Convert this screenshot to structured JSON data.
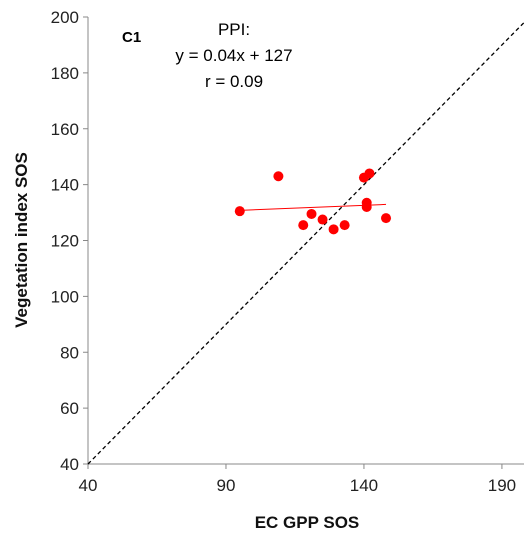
{
  "chart_data": {
    "type": "scatter",
    "panel_label": "C1",
    "annotations": [
      "PPI:",
      "y = 0.04x + 127",
      "r = 0.09"
    ],
    "xlabel": "EC GPP SOS",
    "ylabel": "Vegetation index SOS",
    "xlim": [
      40,
      198
    ],
    "ylim": [
      40,
      200
    ],
    "xticks": [
      40,
      90,
      140,
      190
    ],
    "yticks": [
      40,
      60,
      80,
      100,
      120,
      140,
      160,
      180,
      200
    ],
    "grid": false,
    "points": [
      {
        "x": 95,
        "y": 130.5
      },
      {
        "x": 109,
        "y": 143
      },
      {
        "x": 118,
        "y": 125.5
      },
      {
        "x": 121,
        "y": 129.5
      },
      {
        "x": 125,
        "y": 127.5
      },
      {
        "x": 129,
        "y": 124
      },
      {
        "x": 133,
        "y": 125.5
      },
      {
        "x": 140,
        "y": 142.5
      },
      {
        "x": 141,
        "y": 133.5
      },
      {
        "x": 141,
        "y": 132
      },
      {
        "x": 142,
        "y": 144
      },
      {
        "x": 148,
        "y": 128
      }
    ],
    "fit_line": {
      "slope": 0.04,
      "intercept": 127,
      "x_range": [
        95,
        148
      ]
    },
    "reference_line": {
      "type": "1:1"
    },
    "colors": {
      "points": "#ff0000",
      "fit_line": "#ff0000",
      "reference_line": "#000000"
    }
  }
}
